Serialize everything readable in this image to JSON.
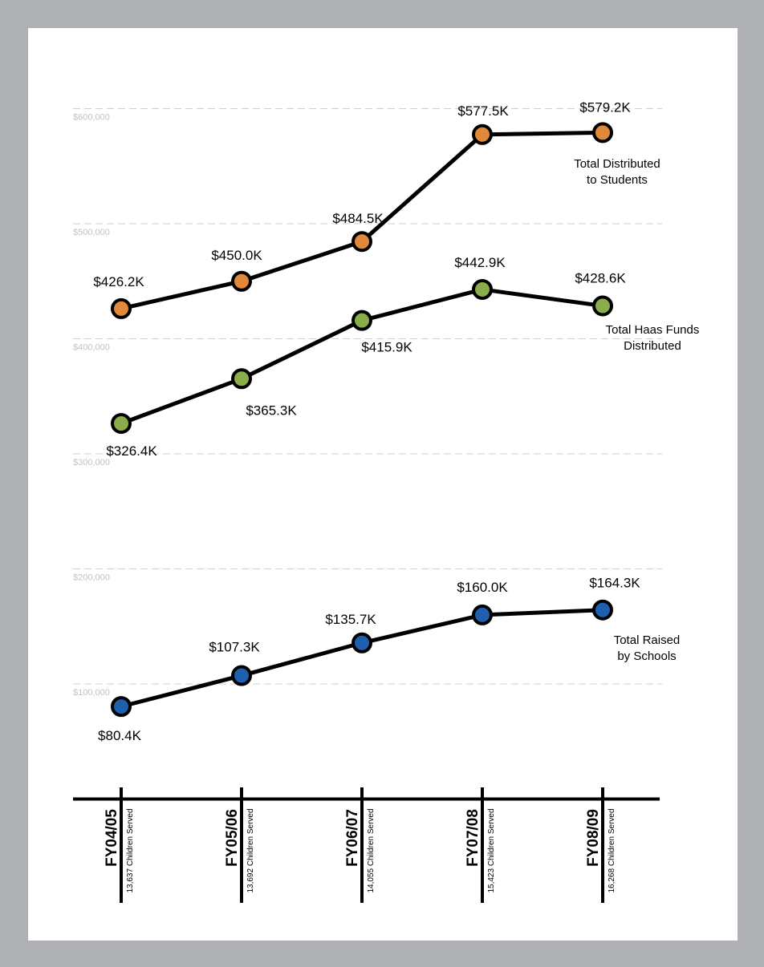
{
  "chart_data": {
    "type": "line",
    "categories": [
      "FY04/05",
      "FY05/06",
      "FY06/07",
      "FY07/08",
      "FY08/09"
    ],
    "category_subtitles": [
      "13,637 Children Served",
      "13,692 Children Served",
      "14,055 Children Served",
      "15,423 Children Served",
      "16,268 Children Served"
    ],
    "y_ticks": [
      100000,
      200000,
      300000,
      400000,
      500000,
      600000
    ],
    "y_tick_labels": [
      "$100,000",
      "$200,000",
      "$300,000",
      "$400,000",
      "$500,000",
      "$600,000"
    ],
    "ylim": [
      0,
      610000
    ],
    "grid": true,
    "series": [
      {
        "name": [
          "Total Distributed",
          "to Students"
        ],
        "color": "#e0893a",
        "values": [
          426200,
          450000,
          484500,
          577500,
          579200
        ],
        "labels": [
          "$426.2K",
          "$450.0K",
          "$484.5K",
          "$577.5K",
          "$579.2K"
        ]
      },
      {
        "name": [
          "Total Haas Funds",
          "Distributed"
        ],
        "color": "#8aac4a",
        "values": [
          326400,
          365300,
          415900,
          442900,
          428600
        ],
        "labels": [
          "$326.4K",
          "$365.3K",
          "$415.9K",
          "$442.9K",
          "$428.6K"
        ]
      },
      {
        "name": [
          "Total Raised",
          "by Schools"
        ],
        "color": "#1f5fae",
        "values": [
          80400,
          107300,
          135700,
          160000,
          164300
        ],
        "labels": [
          "$80.4K",
          "$107.3K",
          "$135.7K",
          "$160.0K",
          "$164.3K"
        ]
      }
    ]
  }
}
